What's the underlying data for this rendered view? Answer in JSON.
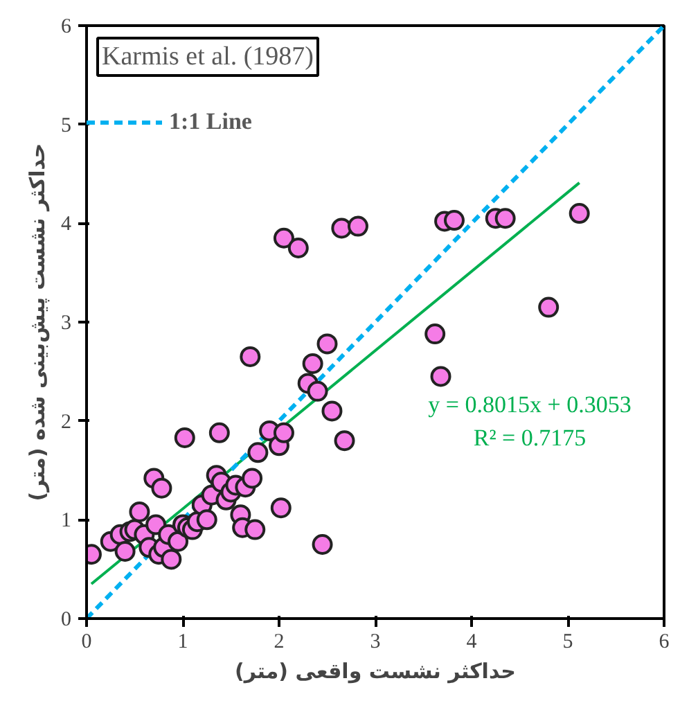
{
  "chart_data": {
    "type": "scatter",
    "xlabel": "حداکثر نشست واقعی (متر)",
    "ylabel": "حداکثر نشست پیش‌بینی شده (متر)",
    "xlim": [
      0,
      6
    ],
    "ylim": [
      0,
      6
    ],
    "xticks": [
      0,
      1,
      2,
      3,
      4,
      5,
      6
    ],
    "yticks": [
      0,
      1,
      2,
      3,
      4,
      5,
      6
    ],
    "grid": false,
    "legend": "top left",
    "annotations": [
      "Karmis et al. (1987)",
      "y = 0.8015x + 0.3053",
      "R² = 0.7175"
    ],
    "series": [
      {
        "marker": "circle",
        "color": "#f57ce6",
        "x": [
          0.05,
          0.25,
          0.35,
          0.4,
          0.45,
          0.5,
          0.55,
          0.6,
          0.65,
          0.7,
          0.72,
          0.75,
          0.78,
          0.8,
          0.85,
          0.88,
          0.95,
          1.0,
          1.02,
          1.05,
          1.1,
          1.15,
          1.2,
          1.25,
          1.3,
          1.35,
          1.38,
          1.4,
          1.45,
          1.5,
          1.55,
          1.6,
          1.62,
          1.65,
          1.7,
          1.72,
          1.75,
          1.78,
          1.9,
          2.0,
          2.02,
          2.05,
          2.05,
          2.2,
          2.3,
          2.35,
          2.4,
          2.45,
          2.5,
          2.55,
          2.65,
          2.68,
          2.82,
          3.62,
          3.68,
          3.72,
          3.82,
          4.25,
          4.35,
          4.8,
          5.12
        ],
        "values": [
          0.65,
          0.78,
          0.85,
          0.68,
          0.88,
          0.9,
          1.08,
          0.85,
          0.72,
          1.42,
          0.95,
          0.65,
          1.32,
          0.72,
          0.85,
          0.6,
          0.78,
          0.95,
          1.83,
          0.92,
          0.9,
          0.98,
          1.15,
          1.0,
          1.25,
          1.45,
          1.88,
          1.38,
          1.2,
          1.28,
          1.35,
          1.05,
          0.92,
          1.33,
          2.65,
          1.42,
          0.9,
          1.68,
          1.9,
          1.75,
          1.12,
          1.88,
          3.85,
          3.75,
          2.38,
          2.58,
          2.3,
          0.75,
          2.78,
          2.1,
          3.95,
          1.8,
          3.97,
          2.88,
          2.45,
          4.02,
          4.03,
          4.05,
          4.05,
          3.15,
          4.1
        ]
      },
      {
        "type": "line",
        "marker": "none",
        "color": "#00b050",
        "line_style": "solid",
        "x": [
          0.05,
          5.12
        ],
        "values": [
          0.35,
          4.41
        ]
      },
      {
        "type": "line",
        "marker": "none",
        "name": "1:1 Line",
        "color": "#00b0f0",
        "line_style": "dashed",
        "x": [
          0,
          6
        ],
        "values": [
          0,
          6
        ]
      }
    ]
  }
}
